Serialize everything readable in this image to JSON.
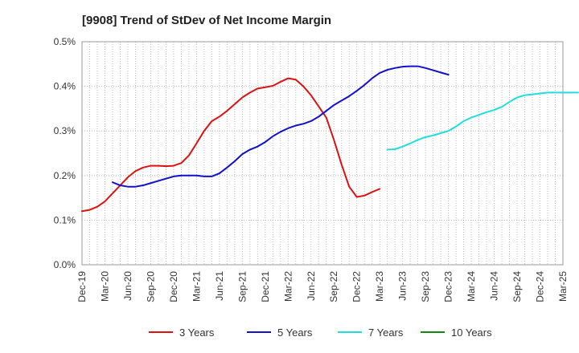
{
  "chart_data": {
    "type": "line",
    "title": "[9908]  Trend of StDev of Net Income Margin",
    "xlabel": "",
    "ylabel": "",
    "x_tick_labels": [
      "Dec-19",
      "Mar-20",
      "Jun-20",
      "Sep-20",
      "Dec-20",
      "Mar-21",
      "Jun-21",
      "Sep-21",
      "Dec-21",
      "Mar-22",
      "Jun-22",
      "Sep-22",
      "Dec-22",
      "Mar-23",
      "Jun-23",
      "Sep-23",
      "Dec-23",
      "Mar-24",
      "Jun-24",
      "Sep-24",
      "Dec-24",
      "Mar-25"
    ],
    "y_tick_labels": [
      "0.0%",
      "0.1%",
      "0.2%",
      "0.3%",
      "0.4%",
      "0.5%"
    ],
    "ylim": [
      0,
      0.5
    ],
    "grid": true,
    "legend_position": "bottom",
    "series": [
      {
        "name": "3 Years",
        "color": "#dd1111",
        "start_index": 0,
        "values": [
          0.12,
          0.123,
          0.13,
          0.142,
          0.16,
          0.178,
          0.196,
          0.21,
          0.218,
          0.222,
          0.222,
          0.221,
          0.222,
          0.228,
          0.245,
          0.272,
          0.3,
          0.322,
          0.332,
          0.345,
          0.36,
          0.375,
          0.386,
          0.395,
          0.398,
          0.401,
          0.41,
          0.418,
          0.415,
          0.4,
          0.38,
          0.355,
          0.33,
          0.28,
          0.225,
          0.175,
          0.152,
          0.155,
          0.163,
          0.17
        ]
      },
      {
        "name": "5 Years",
        "color": "#1111cc",
        "start_index": 4,
        "values": [
          0.185,
          0.178,
          0.175,
          0.175,
          0.178,
          0.183,
          0.188,
          0.193,
          0.198,
          0.2,
          0.2,
          0.2,
          0.198,
          0.198,
          0.205,
          0.218,
          0.232,
          0.248,
          0.258,
          0.265,
          0.275,
          0.288,
          0.298,
          0.306,
          0.312,
          0.316,
          0.322,
          0.332,
          0.345,
          0.358,
          0.368,
          0.378,
          0.39,
          0.403,
          0.418,
          0.43,
          0.437,
          0.441,
          0.444,
          0.445,
          0.445,
          0.441,
          0.436,
          0.431,
          0.426
        ]
      },
      {
        "name": "7 Years",
        "color": "#22dddd",
        "start_index": 40,
        "values": [
          0.258,
          0.259,
          0.265,
          0.272,
          0.28,
          0.286,
          0.29,
          0.295,
          0.3,
          0.31,
          0.322,
          0.33,
          0.336,
          0.342,
          0.347,
          0.354,
          0.365,
          0.375,
          0.38,
          0.382,
          0.384,
          0.386,
          0.386,
          0.386,
          0.386,
          0.386
        ]
      },
      {
        "name": "10 Years",
        "color": "#118811",
        "start_index": 0,
        "values": []
      }
    ]
  }
}
